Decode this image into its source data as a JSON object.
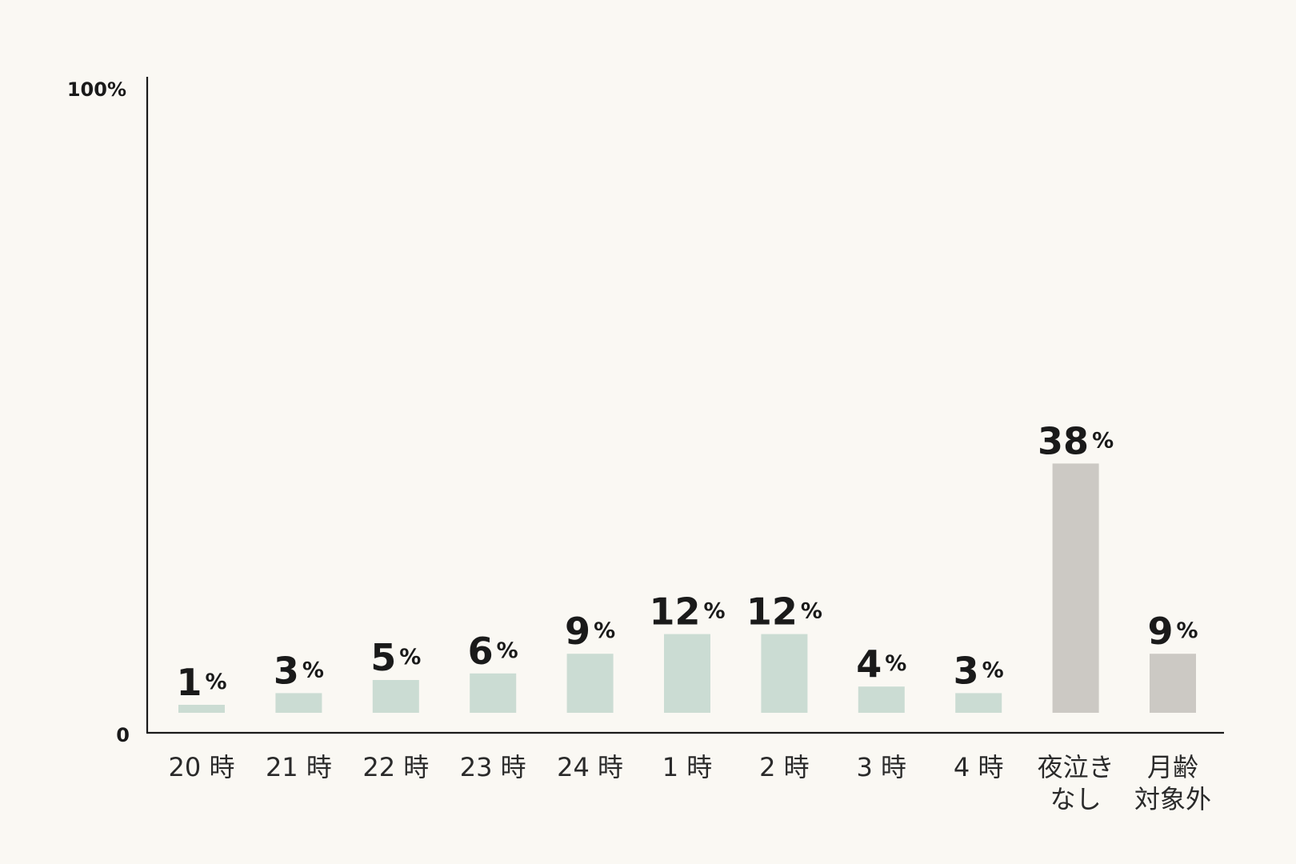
{
  "chart_data": {
    "type": "bar",
    "title": "",
    "xlabel": "",
    "ylabel": "",
    "ylim": [
      0,
      100
    ],
    "y_ticks": [
      "0",
      "100%"
    ],
    "value_unit": "%",
    "categories": [
      [
        "20 時"
      ],
      [
        "21 時"
      ],
      [
        "22 時"
      ],
      [
        "23 時"
      ],
      [
        "24 時"
      ],
      [
        "1 時"
      ],
      [
        "2 時"
      ],
      [
        "3 時"
      ],
      [
        "4 時"
      ],
      [
        "夜泣き",
        "なし"
      ],
      [
        "月齢",
        "対象外"
      ]
    ],
    "values": [
      1,
      3,
      5,
      6,
      9,
      12,
      12,
      4,
      3,
      38,
      9
    ],
    "colors": {
      "hour_bar": "#cbdcd3",
      "other_bar": "#ccc9c4",
      "axis": "#1a1a1a",
      "background": "#faf8f3"
    },
    "bar_color_groups": [
      "hour",
      "hour",
      "hour",
      "hour",
      "hour",
      "hour",
      "hour",
      "hour",
      "hour",
      "other",
      "other"
    ],
    "grid": false,
    "legend": "none"
  }
}
